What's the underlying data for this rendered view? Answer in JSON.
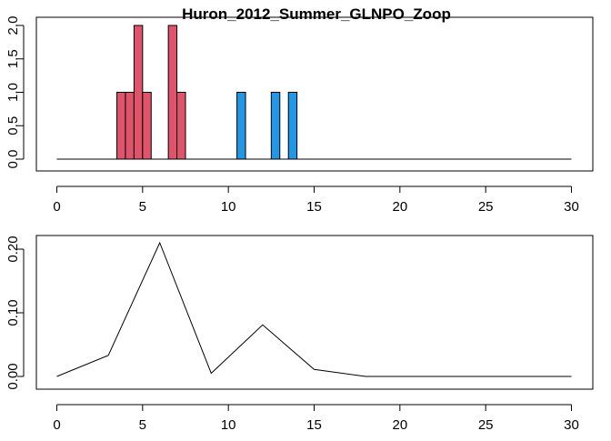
{
  "chart_data": [
    {
      "type": "bar",
      "title": "Huron_2012_Summer_GLNPO_Zoop",
      "xlabel": "",
      "ylabel": "",
      "xlim": [
        0,
        30
      ],
      "ylim": [
        0,
        2
      ],
      "x_ticks": [
        "0",
        "5",
        "10",
        "15",
        "20",
        "25",
        "30"
      ],
      "y_ticks": [
        "0.0",
        "0.5",
        "1.0",
        "1.5",
        "2.0"
      ],
      "grid": false,
      "bins": [
        {
          "x0": 3.5,
          "x1": 4.0,
          "value": 1,
          "color": "#DF536B"
        },
        {
          "x0": 4.0,
          "x1": 4.5,
          "value": 1,
          "color": "#DF536B"
        },
        {
          "x0": 4.5,
          "x1": 5.0,
          "value": 2,
          "color": "#DF536B"
        },
        {
          "x0": 5.0,
          "x1": 5.5,
          "value": 1,
          "color": "#DF536B"
        },
        {
          "x0": 6.5,
          "x1": 7.0,
          "value": 2,
          "color": "#DF536B"
        },
        {
          "x0": 7.0,
          "x1": 7.5,
          "value": 1,
          "color": "#DF536B"
        },
        {
          "x0": 10.5,
          "x1": 11.0,
          "value": 1,
          "color": "#2297E6"
        },
        {
          "x0": 12.5,
          "x1": 13.0,
          "value": 1,
          "color": "#2297E6"
        },
        {
          "x0": 13.5,
          "x1": 14.0,
          "value": 1,
          "color": "#2297E6"
        }
      ],
      "baseline": {
        "x0": 0,
        "x1": 30,
        "y": 0
      }
    },
    {
      "type": "line",
      "title": "",
      "xlabel": "",
      "ylabel": "",
      "xlim": [
        0,
        30
      ],
      "ylim": [
        0,
        0.21
      ],
      "x_ticks": [
        "0",
        "5",
        "10",
        "15",
        "20",
        "25",
        "30"
      ],
      "y_ticks": [
        "0.00",
        "0.10",
        "0.20"
      ],
      "grid": false,
      "series": [
        {
          "color": "#000000",
          "x": [
            0,
            3,
            6,
            9,
            12,
            15,
            18,
            21,
            24,
            27,
            30
          ],
          "values": [
            0.0,
            0.033,
            0.21,
            0.005,
            0.081,
            0.011,
            0.0,
            0.0,
            0.0,
            0.0,
            0.0
          ]
        }
      ]
    }
  ]
}
